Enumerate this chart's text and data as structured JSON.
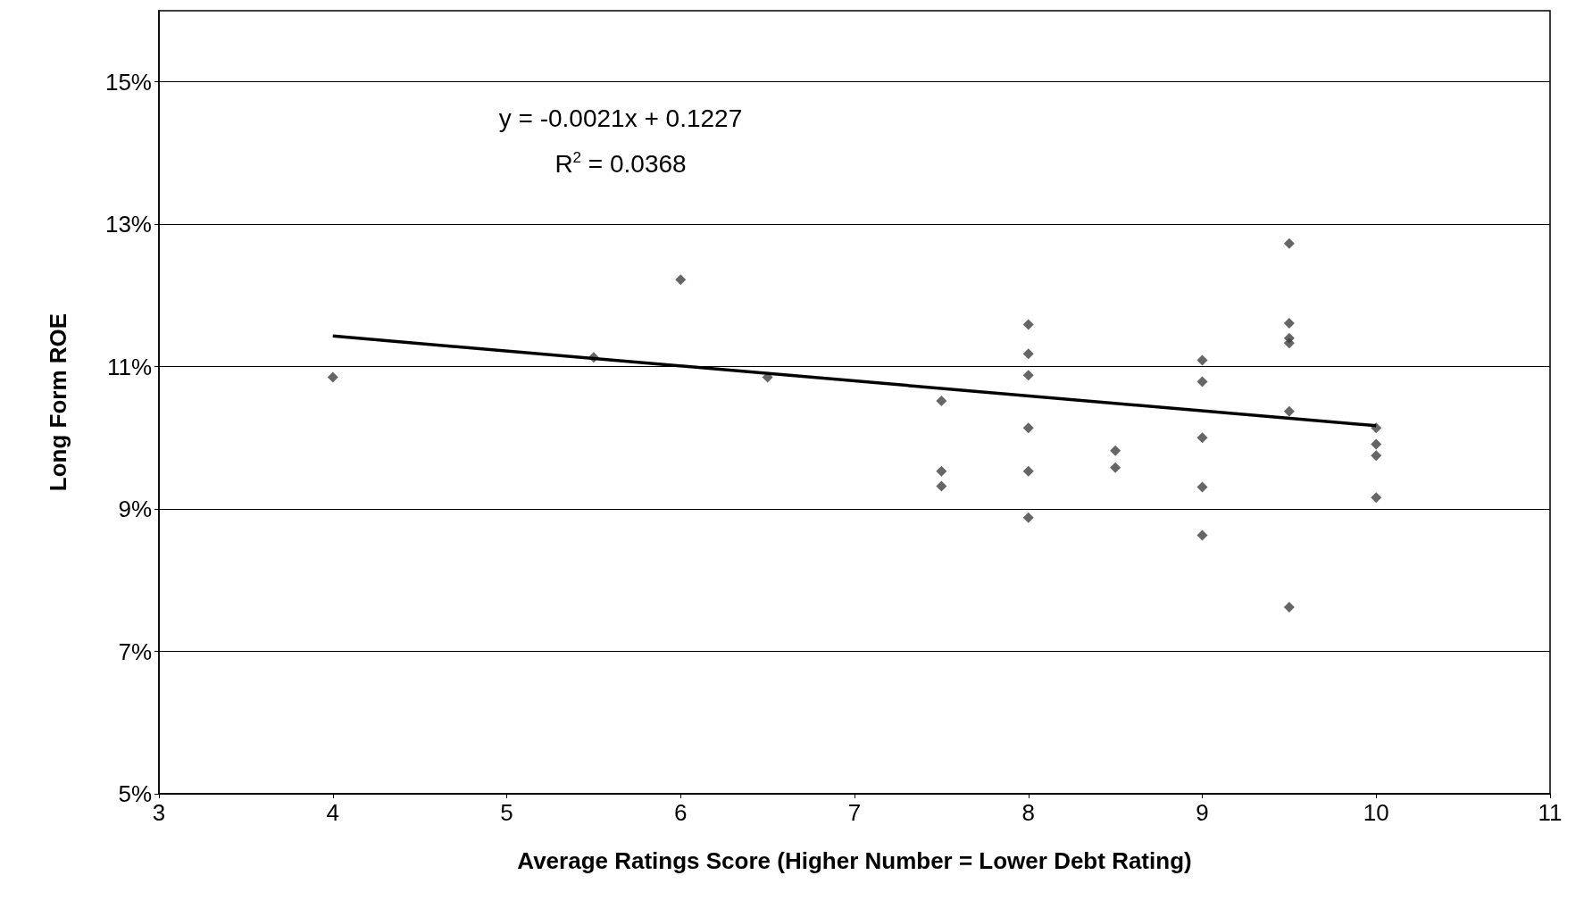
{
  "chart_data": {
    "type": "scatter",
    "xlabel": "Average Ratings Score (Higher Number = Lower Debt Rating)",
    "ylabel": "Long Form ROE",
    "annotations": [
      "y = -0.0021x + 0.1227",
      "R$^{2}$ = 0.0368"
    ],
    "xlim": [
      3,
      11
    ],
    "xticks": [
      3,
      4,
      5,
      6,
      7,
      8,
      9,
      10,
      11
    ],
    "ylim": [
      5,
      16
    ],
    "yticks": [
      {
        "value": 5,
        "label": "5%"
      },
      {
        "value": 7,
        "label": "7%"
      },
      {
        "value": 9,
        "label": "9%"
      },
      {
        "value": 11,
        "label": "11%"
      },
      {
        "value": 13,
        "label": "13%"
      },
      {
        "value": 15,
        "label": "15%"
      }
    ],
    "grid": "y",
    "marker": "diamond",
    "series": [
      {
        "color": "#404040",
        "x": [
          4,
          5.5,
          6,
          6.5,
          7.5,
          7.5,
          7.5,
          8,
          8,
          8,
          8,
          8,
          8,
          8.5,
          8.5,
          9,
          9,
          9,
          9,
          9,
          9.5,
          9.5,
          9.5,
          9.5,
          9.5,
          9.5,
          10,
          10,
          10,
          10
        ],
        "values": [
          10.85,
          11.13,
          12.22,
          10.85,
          10.52,
          9.53,
          9.32,
          11.59,
          11.18,
          10.88,
          10.14,
          9.53,
          8.88,
          9.82,
          9.58,
          11.09,
          10.79,
          10.0,
          9.31,
          8.63,
          12.73,
          11.61,
          11.4,
          11.33,
          10.37,
          7.62,
          10.14,
          9.91,
          9.75,
          9.16
        ]
      },
      {
        "type": "line",
        "color": "#000000",
        "marker": "none",
        "line_style": "solid",
        "x": [
          4,
          10
        ],
        "values": [
          11.43,
          10.17
        ]
      }
    ]
  }
}
